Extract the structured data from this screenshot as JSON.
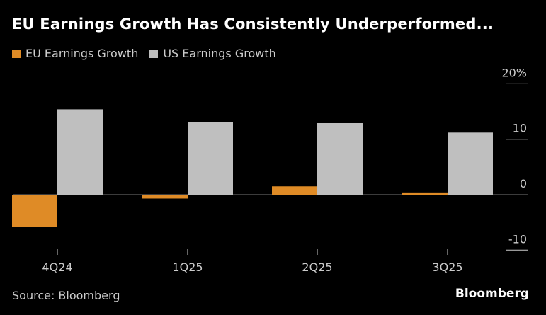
{
  "title": "EU Earnings Growth Has Consistently Underperformed...",
  "source": "Source: Bloomberg",
  "brand": "Bloomberg",
  "colors": {
    "eu": "#df8b26",
    "us": "#bfbfbf",
    "background": "#000000"
  },
  "chart_data": {
    "type": "bar",
    "title": "EU Earnings Growth Has Consistently Underperformed...",
    "categories": [
      "4Q24",
      "1Q25",
      "2Q25",
      "3Q25"
    ],
    "series": [
      {
        "name": "EU Earnings Growth",
        "values": [
          -5.8,
          -0.7,
          1.5,
          0.4
        ]
      },
      {
        "name": "US Earnings Growth",
        "values": [
          15.4,
          13.1,
          12.9,
          11.2
        ]
      }
    ],
    "yticks": [
      20,
      10,
      0,
      -10
    ],
    "ytick_labels": [
      "20%",
      "10",
      "0",
      "-10"
    ],
    "ylim": [
      -10,
      20
    ],
    "xlabel": "",
    "ylabel": "",
    "legend_position": "top-left",
    "grid": false
  }
}
